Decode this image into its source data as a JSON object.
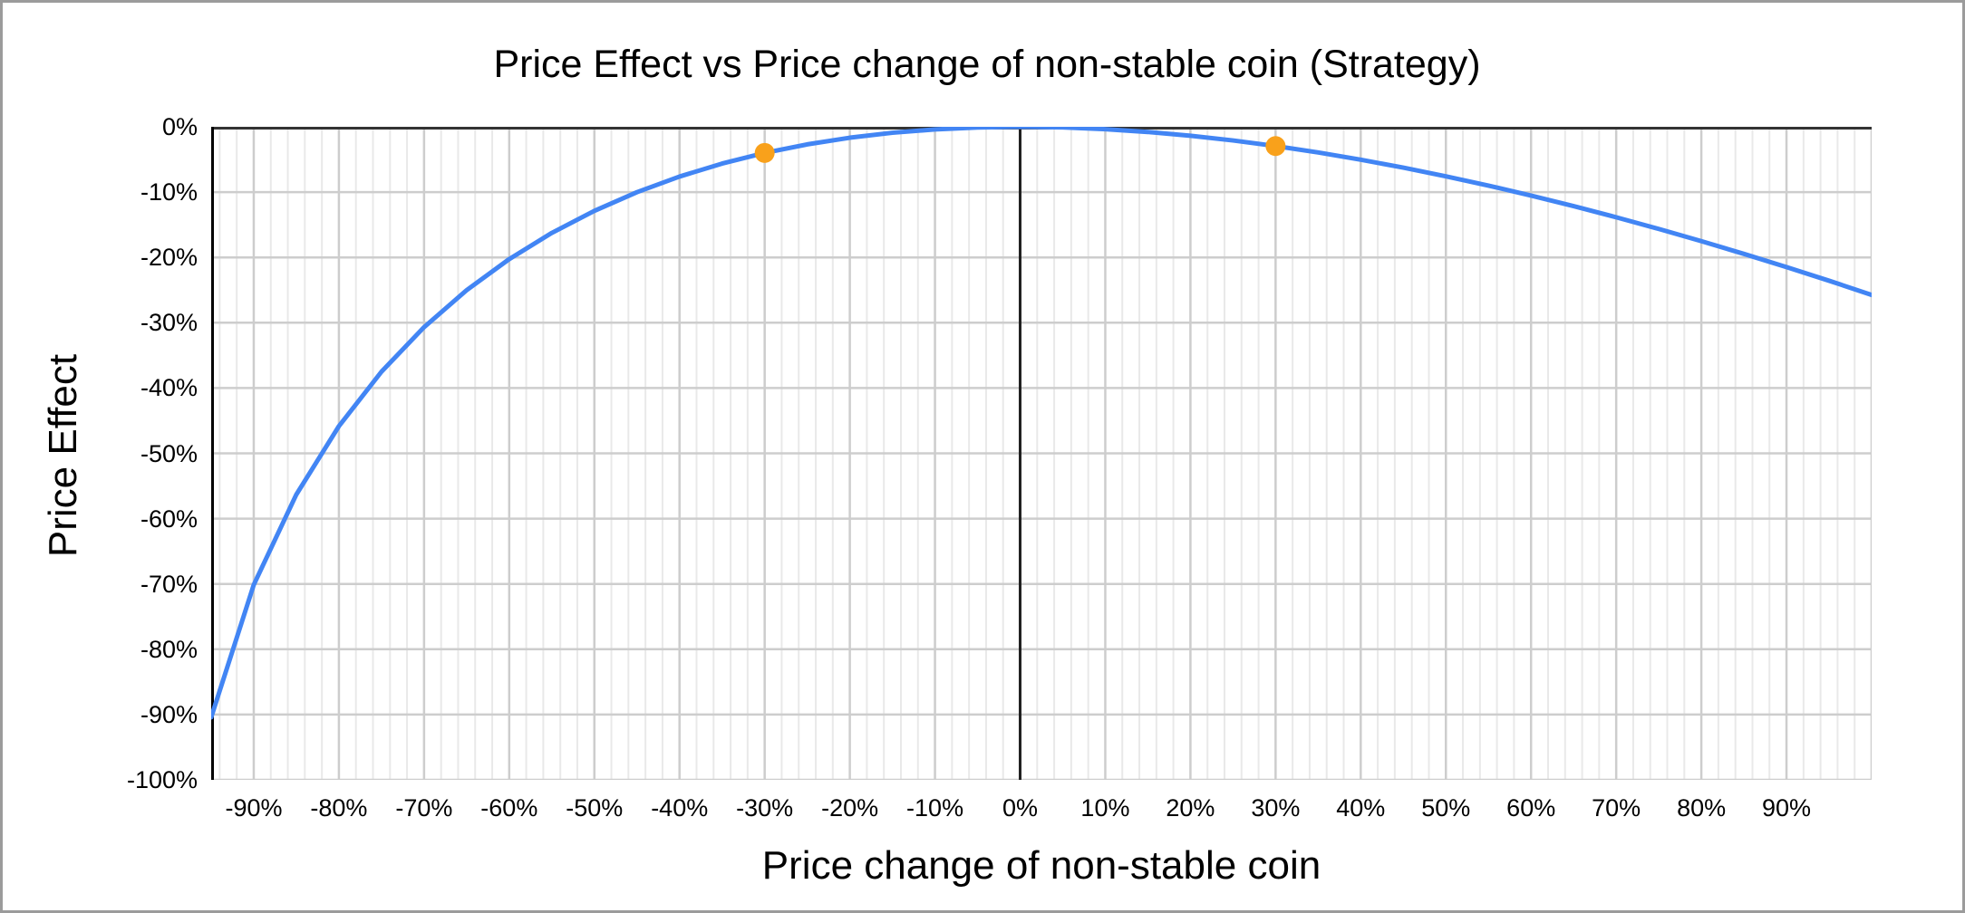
{
  "frame": {
    "border_color": "#9b9b9b",
    "background_color": "#ffffff"
  },
  "chart": {
    "title": "Price Effect vs Price change of non-stable coin (Strategy)",
    "x_axis_title": "Price change of non-stable coin",
    "y_axis_title": "Price Effect"
  },
  "chart_data": {
    "type": "line",
    "title": "Price Effect vs Price change of non-stable coin (Strategy)",
    "xlabel": "Price change of non-stable coin",
    "ylabel": "Price Effect",
    "xlim": [
      -95,
      100
    ],
    "ylim": [
      -100,
      0
    ],
    "unit": "%",
    "grid": "on",
    "legend": "none",
    "x": [
      -95,
      -90,
      -85,
      -80,
      -75,
      -70,
      -65,
      -60,
      -55,
      -50,
      -45,
      -40,
      -35,
      -30,
      -25,
      -20,
      -15,
      -10,
      -5,
      0,
      5,
      10,
      15,
      20,
      25,
      30,
      35,
      40,
      45,
      50,
      55,
      60,
      65,
      70,
      75,
      80,
      85,
      90,
      95,
      100
    ],
    "series": [
      {
        "name": "Strategy",
        "color": "#4285f4",
        "values": [
          -90.42,
          -70.13,
          -56.31,
          -45.84,
          -37.5,
          -30.68,
          -25.02,
          -20.26,
          -16.25,
          -12.87,
          -10.01,
          -7.62,
          -5.63,
          -4.0,
          -2.69,
          -1.67,
          -0.91,
          -0.4,
          -0.1,
          0.0,
          -0.09,
          -0.36,
          -0.79,
          -1.37,
          -2.09,
          -2.95,
          -3.93,
          -5.04,
          -6.25,
          -7.58,
          -9.0,
          -10.53,
          -12.14,
          -13.85,
          -15.64,
          -17.51,
          -19.46,
          -21.48,
          -23.57,
          -25.74
        ]
      }
    ],
    "highlight_points": [
      {
        "x": -30,
        "y": -4.0
      },
      {
        "x": 30,
        "y": -2.95
      }
    ],
    "highlight_color": "#f9a11b",
    "x_tick_values": [
      -90,
      -80,
      -70,
      -60,
      -50,
      -40,
      -30,
      -20,
      -10,
      0,
      10,
      20,
      30,
      40,
      50,
      60,
      70,
      80,
      90
    ],
    "x_tick_labels": [
      "-90%",
      "-80%",
      "-70%",
      "-60%",
      "-50%",
      "-40%",
      "-30%",
      "-20%",
      "-10%",
      "0%",
      "10%",
      "20%",
      "30%",
      "40%",
      "50%",
      "60%",
      "70%",
      "80%",
      "90%"
    ],
    "y_tick_values": [
      0,
      -10,
      -20,
      -30,
      -40,
      -50,
      -60,
      -70,
      -80,
      -90,
      -100
    ],
    "y_tick_labels": [
      "0%",
      "-10%",
      "-20%",
      "-30%",
      "-40%",
      "-50%",
      "-60%",
      "-70%",
      "-80%",
      "-90%",
      "-100%"
    ],
    "x_major_step": 10,
    "x_minor_step": 2,
    "y_major_step": 10,
    "colors": {
      "line": "#4285f4",
      "point": "#f9a11b",
      "grid_major": "#cdcdcd",
      "grid_minor": "#e9e9e9",
      "zero_line_top": "#333333",
      "zero_line_vertical": "#212121",
      "left_axis": "#000000"
    }
  }
}
